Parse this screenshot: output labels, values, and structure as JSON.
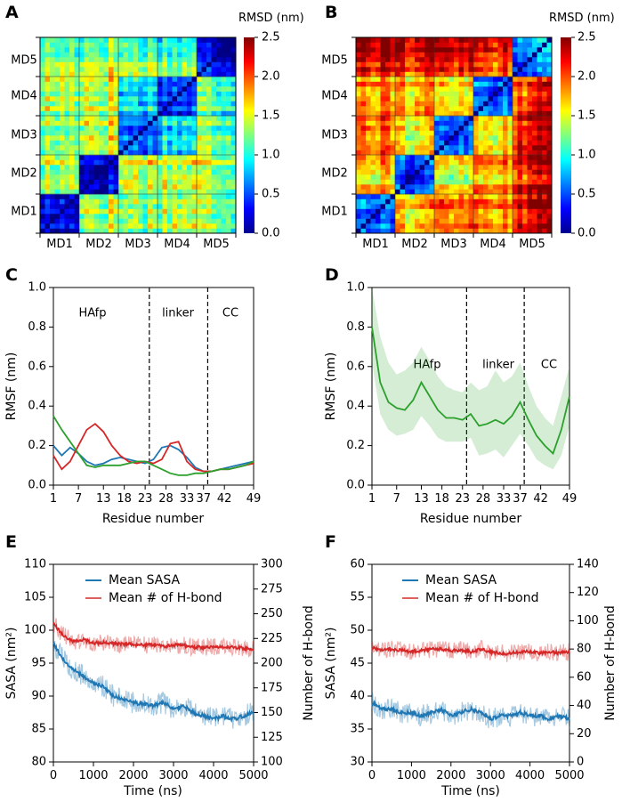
{
  "panel_labels": [
    "A",
    "B",
    "C",
    "D",
    "E",
    "F"
  ],
  "chart_data": [
    {
      "panel": "A",
      "type": "heatmap",
      "colorbar_label": "RMSD (nm)",
      "colorbar_ticks": [
        "0.0",
        "0.5",
        "1.0",
        "1.5",
        "2.0",
        "2.5"
      ],
      "clim": [
        0,
        2.5
      ],
      "x_blocks": [
        "MD1",
        "MD2",
        "MD3",
        "MD4",
        "MD5"
      ],
      "y_blocks": [
        "MD5",
        "MD4",
        "MD3",
        "MD2",
        "MD1"
      ],
      "block_mean_rmsd": [
        [
          0.3,
          1.4,
          1.3,
          1.4,
          1.3
        ],
        [
          1.4,
          0.3,
          1.5,
          1.5,
          1.4
        ],
        [
          1.3,
          1.5,
          0.7,
          0.9,
          1.3
        ],
        [
          1.4,
          1.5,
          0.9,
          0.6,
          1.2
        ],
        [
          1.3,
          1.4,
          1.3,
          1.2,
          0.4
        ]
      ]
    },
    {
      "panel": "B",
      "type": "heatmap",
      "colorbar_label": "RMSD (nm)",
      "colorbar_ticks": [
        "0.0",
        "0.5",
        "1.0",
        "1.5",
        "2.0",
        "2.5"
      ],
      "clim": [
        0,
        2.5
      ],
      "x_blocks": [
        "MD1",
        "MD2",
        "MD3",
        "MD4",
        "MD5"
      ],
      "y_blocks": [
        "MD5",
        "MD4",
        "MD3",
        "MD2",
        "MD1"
      ],
      "block_mean_rmsd": [
        [
          0.9,
          1.8,
          2.0,
          2.0,
          2.4
        ],
        [
          1.8,
          0.5,
          1.5,
          1.8,
          2.2
        ],
        [
          2.0,
          1.5,
          0.6,
          1.6,
          2.2
        ],
        [
          2.0,
          1.8,
          1.6,
          0.7,
          2.1
        ],
        [
          2.4,
          2.2,
          2.2,
          2.1,
          0.7
        ]
      ]
    },
    {
      "panel": "C",
      "type": "line",
      "xlabel": "Residue number",
      "ylabel": "RMSF (nm)",
      "xlim": [
        1,
        49
      ],
      "ylim": [
        0,
        1.0
      ],
      "xticks": [
        "1",
        "7",
        "13",
        "18",
        "23",
        "28",
        "33",
        "37",
        "42",
        "49"
      ],
      "yticks": [
        "0.0",
        "0.2",
        "0.4",
        "0.6",
        "0.8",
        "1.0"
      ],
      "regions": [
        "HAfp",
        "linker",
        "CC"
      ],
      "region_boundaries": [
        24,
        38
      ],
      "x": [
        1,
        3,
        5,
        7,
        9,
        11,
        13,
        15,
        17,
        19,
        21,
        23,
        25,
        27,
        29,
        31,
        33,
        35,
        37,
        39,
        41,
        43,
        45,
        47,
        49
      ],
      "series": [
        {
          "name": "blue",
          "color": "#1f77b4",
          "values": [
            0.2,
            0.15,
            0.19,
            0.16,
            0.12,
            0.1,
            0.11,
            0.13,
            0.14,
            0.13,
            0.12,
            0.11,
            0.13,
            0.19,
            0.2,
            0.18,
            0.14,
            0.09,
            0.07,
            0.07,
            0.08,
            0.09,
            0.1,
            0.11,
            0.12
          ]
        },
        {
          "name": "red",
          "color": "#d62728",
          "values": [
            0.15,
            0.08,
            0.12,
            0.2,
            0.28,
            0.31,
            0.27,
            0.2,
            0.15,
            0.12,
            0.11,
            0.12,
            0.11,
            0.13,
            0.21,
            0.22,
            0.12,
            0.08,
            0.07,
            0.07,
            0.08,
            0.08,
            0.09,
            0.1,
            0.11
          ]
        },
        {
          "name": "green",
          "color": "#2ca02c",
          "values": [
            0.35,
            0.28,
            0.22,
            0.16,
            0.1,
            0.09,
            0.1,
            0.1,
            0.1,
            0.11,
            0.12,
            0.12,
            0.1,
            0.08,
            0.06,
            0.05,
            0.05,
            0.06,
            0.06,
            0.07,
            0.08,
            0.08,
            0.09,
            0.1,
            0.12
          ]
        }
      ]
    },
    {
      "panel": "D",
      "type": "line",
      "xlabel": "Residue number",
      "ylabel": "RMSF (nm)",
      "xlim": [
        1,
        49
      ],
      "ylim": [
        0,
        1.0
      ],
      "xticks": [
        "1",
        "7",
        "13",
        "18",
        "23",
        "28",
        "33",
        "37",
        "42",
        "49"
      ],
      "yticks": [
        "0.0",
        "0.2",
        "0.4",
        "0.6",
        "0.8",
        "1.0"
      ],
      "regions": [
        "HAfp",
        "linker",
        "CC"
      ],
      "region_boundaries": [
        24,
        38
      ],
      "x": [
        1,
        3,
        5,
        7,
        9,
        11,
        13,
        15,
        17,
        19,
        21,
        23,
        25,
        27,
        29,
        31,
        33,
        35,
        37,
        39,
        41,
        43,
        45,
        47,
        49
      ],
      "series": [
        {
          "name": "mean",
          "color": "#2ca02c",
          "values": [
            0.8,
            0.52,
            0.42,
            0.39,
            0.38,
            0.43,
            0.52,
            0.45,
            0.38,
            0.34,
            0.34,
            0.33,
            0.36,
            0.3,
            0.31,
            0.33,
            0.31,
            0.35,
            0.42,
            0.33,
            0.25,
            0.2,
            0.16,
            0.28,
            0.45
          ],
          "band_lower": [
            0.62,
            0.36,
            0.28,
            0.25,
            0.26,
            0.28,
            0.35,
            0.3,
            0.24,
            0.22,
            0.22,
            0.22,
            0.24,
            0.15,
            0.16,
            0.18,
            0.14,
            0.2,
            0.26,
            0.2,
            0.13,
            0.1,
            0.08,
            0.15,
            0.3
          ],
          "band_upper": [
            1.0,
            0.75,
            0.62,
            0.56,
            0.58,
            0.62,
            0.7,
            0.63,
            0.55,
            0.5,
            0.48,
            0.47,
            0.52,
            0.48,
            0.5,
            0.58,
            0.52,
            0.55,
            0.62,
            0.5,
            0.4,
            0.34,
            0.3,
            0.45,
            0.6
          ]
        }
      ]
    },
    {
      "panel": "E",
      "type": "line",
      "xlabel": "Time (ns)",
      "ylabel": "SASA (nm²)",
      "ylabel_right": "Number of H-bond",
      "xlim": [
        0,
        5000
      ],
      "ylim": [
        80,
        110
      ],
      "ylim_right": [
        100,
        300
      ],
      "xticks": [
        "0",
        "1000",
        "2000",
        "3000",
        "4000",
        "5000"
      ],
      "yticks": [
        "80",
        "85",
        "90",
        "95",
        "100",
        "105",
        "110"
      ],
      "yticks_right": [
        "100",
        "125",
        "150",
        "175",
        "200",
        "225",
        "250",
        "275",
        "300"
      ],
      "legend": [
        "Mean SASA",
        "Mean # of H-bond"
      ],
      "x": [
        0,
        250,
        500,
        750,
        1000,
        1250,
        1500,
        1750,
        2000,
        2250,
        2500,
        2750,
        3000,
        3250,
        3500,
        3750,
        4000,
        4250,
        4500,
        4750,
        5000
      ],
      "series": [
        {
          "name": "Mean SASA",
          "axis": "left",
          "color": "#1f77b4",
          "values": [
            98,
            95.5,
            94,
            93,
            92,
            91.5,
            90,
            89.5,
            89,
            88.8,
            88.5,
            89,
            88,
            88.5,
            87.5,
            87,
            86.5,
            87,
            86.5,
            87,
            87.5
          ]
        },
        {
          "name": "Mean # of H-bond",
          "axis": "right",
          "color": "#d62728",
          "values": [
            240,
            228,
            222,
            224,
            220,
            221,
            220,
            219,
            219,
            218,
            219,
            217,
            218,
            218,
            216,
            216,
            217,
            216,
            216,
            215,
            214
          ]
        }
      ]
    },
    {
      "panel": "F",
      "type": "line",
      "xlabel": "Time (ns)",
      "ylabel": "SASA (nm²)",
      "ylabel_right": "Number of H-bond",
      "xlim": [
        0,
        5000
      ],
      "ylim": [
        30,
        60
      ],
      "ylim_right": [
        0,
        140
      ],
      "xticks": [
        "0",
        "1000",
        "2000",
        "3000",
        "4000",
        "5000"
      ],
      "yticks": [
        "30",
        "35",
        "40",
        "45",
        "50",
        "55",
        "60"
      ],
      "yticks_right": [
        "0",
        "20",
        "40",
        "60",
        "80",
        "100",
        "120",
        "140"
      ],
      "legend": [
        "Mean SASA",
        "Mean # of H-bond"
      ],
      "x": [
        0,
        250,
        500,
        750,
        1000,
        1250,
        1500,
        1750,
        2000,
        2250,
        2500,
        2750,
        3000,
        3250,
        3500,
        3750,
        4000,
        4250,
        4500,
        4750,
        5000
      ],
      "series": [
        {
          "name": "Mean SASA",
          "axis": "left",
          "color": "#1f77b4",
          "values": [
            39,
            38,
            38,
            37.5,
            37.5,
            37,
            37.5,
            38,
            37,
            37.5,
            38,
            37.5,
            36.5,
            37,
            37,
            37.5,
            37,
            37,
            36.5,
            37,
            36.5
          ]
        },
        {
          "name": "Mean # of H-bond",
          "axis": "right",
          "color": "#d62728",
          "values": [
            81,
            79,
            80,
            79,
            78,
            79,
            80,
            80,
            79,
            79,
            78,
            80,
            78,
            77,
            77,
            78,
            78,
            77,
            78,
            77,
            78
          ]
        }
      ]
    }
  ]
}
